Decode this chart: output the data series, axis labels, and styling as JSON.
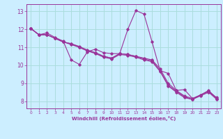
{
  "xlabel": "Windchill (Refroidissement éolien,°C)",
  "background_color": "#cceeff",
  "line_color": "#993399",
  "grid_color": "#aadddd",
  "xlim": [
    -0.5,
    23.5
  ],
  "ylim": [
    7.6,
    13.4
  ],
  "yticks": [
    8,
    9,
    10,
    11,
    12,
    13
  ],
  "xticks": [
    0,
    1,
    2,
    3,
    4,
    5,
    6,
    7,
    8,
    9,
    10,
    11,
    12,
    13,
    14,
    15,
    16,
    17,
    18,
    19,
    20,
    21,
    22,
    23
  ],
  "lines": [
    [
      12.05,
      11.7,
      11.8,
      11.55,
      11.35,
      10.3,
      10.05,
      10.75,
      10.9,
      10.7,
      10.65,
      10.65,
      12.0,
      13.05,
      12.85,
      11.3,
      9.7,
      9.55,
      8.6,
      8.65,
      8.15,
      8.35,
      8.6,
      8.15
    ],
    [
      12.05,
      11.7,
      11.7,
      11.5,
      11.3,
      11.2,
      11.0,
      10.8,
      10.7,
      10.5,
      10.4,
      10.65,
      10.6,
      10.5,
      10.4,
      10.3,
      9.8,
      9.0,
      8.6,
      8.3,
      8.15,
      8.35,
      8.55,
      8.2
    ],
    [
      12.05,
      11.7,
      11.7,
      11.5,
      11.3,
      11.2,
      11.05,
      10.85,
      10.7,
      10.5,
      10.4,
      10.65,
      10.6,
      10.5,
      10.35,
      10.25,
      9.7,
      8.9,
      8.55,
      8.25,
      8.1,
      8.35,
      8.55,
      8.15
    ],
    [
      12.05,
      11.7,
      11.7,
      11.5,
      11.3,
      11.15,
      11.0,
      10.8,
      10.65,
      10.45,
      10.35,
      10.6,
      10.55,
      10.45,
      10.3,
      10.2,
      9.65,
      8.85,
      8.5,
      8.2,
      8.1,
      8.3,
      8.5,
      8.1
    ]
  ]
}
